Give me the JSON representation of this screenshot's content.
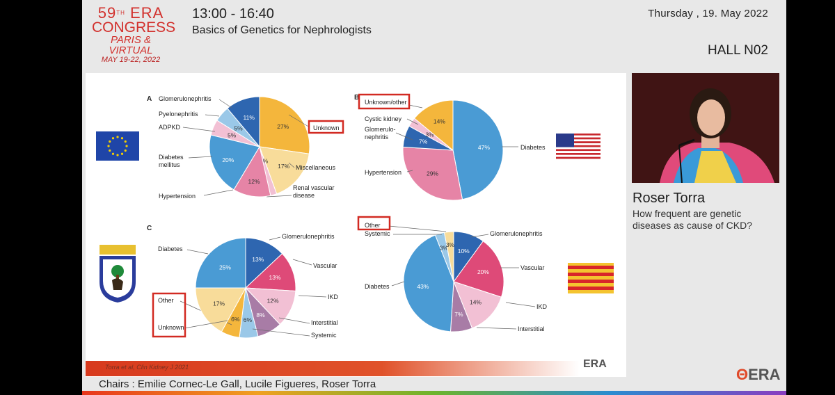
{
  "header": {
    "logo": {
      "line1": "59",
      "sup": "TH",
      "era": "ERA",
      "line2": "CONGRESS",
      "line3": "PARIS & VIRTUAL",
      "line4": "MAY 19-22, 2022"
    },
    "time": "13:00 - 16:40",
    "session": "Basics of Genetics for Nephrologists",
    "date": "Thursday , 19. May 2022",
    "hall": "HALL N02"
  },
  "speaker": {
    "name": "Roser Torra",
    "title_line1": "How frequent are genetic",
    "title_line2": "diseases as cause of CKD?"
  },
  "footer": {
    "chairs": "Chairs : Emilie Cornec-Le Gall, Lucile Figueres, Roser Torra",
    "era_logo": "ERA",
    "citation": "Torra et al, Clin Kidney J 2021",
    "slide_logo": "ERA"
  },
  "colors": {
    "accent": "#d2302c",
    "highlight_box": "#d22a22",
    "blue_dark": "#2e66b0",
    "blue_mid": "#4a9bd4",
    "orange": "#f4b63c",
    "light_yellow": "#f8dc9a",
    "pink": "#e684a6",
    "light_pink": "#f2c0d4",
    "magenta": "#de4a78",
    "mauve": "#a87ca6"
  },
  "chart_data": [
    {
      "type": "pie",
      "panel_label": "A",
      "region_flag": "eu-flag",
      "slices": [
        {
          "label": "Unknown",
          "value": 27,
          "value_label": "27%",
          "color": "#f4b63c",
          "highlighted": true
        },
        {
          "label": "Miscellaneous",
          "value": 17,
          "value_label": "17%",
          "color": "#f8dc9a"
        },
        {
          "label": "Renal vascular disease",
          "value": 2,
          "value_label": "2%",
          "color": "#f2c0d4"
        },
        {
          "label": "Hypertension",
          "value": 12,
          "value_label": "12%",
          "color": "#e684a6"
        },
        {
          "label": "Diabetes mellitus",
          "value": 20,
          "value_label": "20%",
          "color": "#4a9bd4"
        },
        {
          "label": "ADPKD",
          "value": 5,
          "value_label": "5%",
          "color": "#f2c0d4"
        },
        {
          "label": "Pyelonephritis",
          "value": 5,
          "value_label": "5%",
          "color": "#9ac8e8"
        },
        {
          "label": "Glomerulonephritis",
          "value": 11,
          "value_label": "11%",
          "color": "#2e66b0"
        }
      ]
    },
    {
      "type": "pie",
      "panel_label": "B",
      "region_flag": "us-flag",
      "slices": [
        {
          "label": "Diabetes",
          "value": 47,
          "value_label": "47%",
          "color": "#4a9bd4"
        },
        {
          "label": "Hypertension",
          "value": 29,
          "value_label": "29%",
          "color": "#e684a6"
        },
        {
          "label": "Glomerulo-nephritis",
          "value": 7,
          "value_label": "7%",
          "color": "#2e66b0"
        },
        {
          "label": "Cystic kidney",
          "value": 3,
          "value_label": "3%",
          "color": "#f2c0d4"
        },
        {
          "label": "Unknown/other",
          "value": 14,
          "value_label": "14%",
          "color": "#f4b63c",
          "highlighted": true
        }
      ]
    },
    {
      "type": "pie",
      "panel_label": "C",
      "region_flag": "madrid-coat-of-arms",
      "slices": [
        {
          "label": "Glomerulonephritis",
          "value": 13,
          "value_label": "13%",
          "color": "#2e66b0"
        },
        {
          "label": "Vascular",
          "value": 13,
          "value_label": "13%",
          "color": "#de4a78"
        },
        {
          "label": "IKD",
          "value": 12,
          "value_label": "12%",
          "color": "#f2c0d4"
        },
        {
          "label": "Interstitial",
          "value": 8,
          "value_label": "8%",
          "color": "#a87ca6"
        },
        {
          "label": "Systemic",
          "value": 6,
          "value_label": "6%",
          "color": "#9ac8e8"
        },
        {
          "label": "Other",
          "value": 6,
          "value_label": "6%",
          "color": "#f4b63c",
          "highlighted": true
        },
        {
          "label": "Unknown",
          "value": 17,
          "value_label": "17%",
          "color": "#f8dc9a",
          "highlighted": true
        },
        {
          "label": "Diabetes",
          "value": 25,
          "value_label": "25%",
          "color": "#4a9bd4"
        }
      ]
    },
    {
      "type": "pie",
      "panel_label": "",
      "region_flag": "catalonia-flag",
      "slices": [
        {
          "label": "Glomerulonephritis",
          "value": 10,
          "value_label": "10%",
          "color": "#2e66b0"
        },
        {
          "label": "Vascular",
          "value": 20,
          "value_label": "20%",
          "color": "#de4a78"
        },
        {
          "label": "IKD",
          "value": 14,
          "value_label": "14%",
          "color": "#f2c0d4"
        },
        {
          "label": "Interstitial",
          "value": 7,
          "value_label": "7%",
          "color": "#a87ca6"
        },
        {
          "label": "Diabetes",
          "value": 43,
          "value_label": "43%",
          "color": "#4a9bd4"
        },
        {
          "label": "Systemic",
          "value": 3,
          "value_label": "3%",
          "color": "#9ac8e8"
        },
        {
          "label": "Other",
          "value": 3,
          "value_label": "3%",
          "color": "#f8dc9a",
          "highlighted": true
        }
      ]
    }
  ]
}
